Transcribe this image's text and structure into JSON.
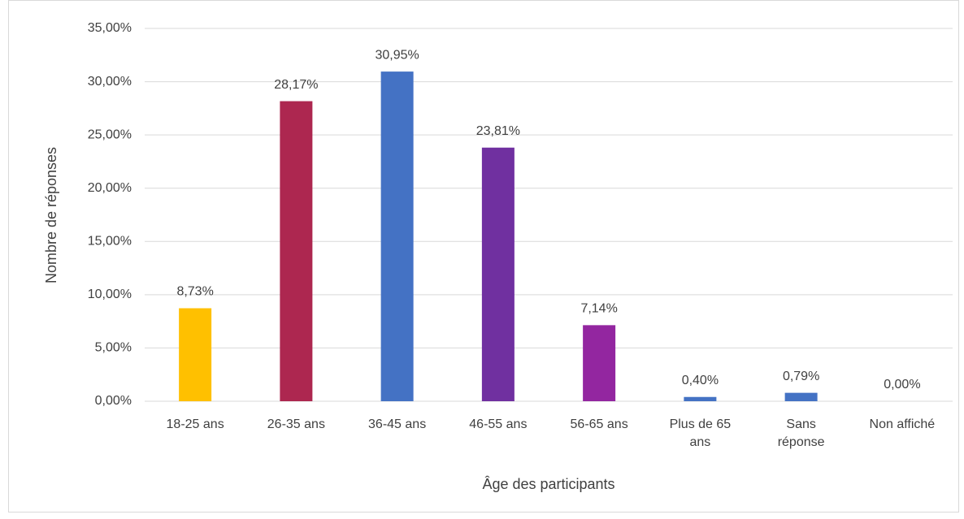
{
  "chart_data": {
    "type": "bar",
    "x_label": "Âge des participants",
    "y_label": "Nombre de réponses",
    "categories": [
      "18-25 ans",
      "26-35 ans",
      "36-45 ans",
      "46-55 ans",
      "56-65 ans",
      "Plus de 65 ans",
      "Sans réponse",
      "Non affiché"
    ],
    "values": [
      8.73,
      28.17,
      30.95,
      23.81,
      7.14,
      0.4,
      0.79,
      0.0
    ],
    "value_labels": [
      "8,73%",
      "28,17%",
      "30,95%",
      "23,81%",
      "7,14%",
      "0,40%",
      "0,79%",
      "0,00%"
    ],
    "colors": [
      "#ffc000",
      "#ad2750",
      "#4472c4",
      "#7030a0",
      "#9326a0",
      "#4472c4",
      "#4472c4",
      "#4472c4"
    ],
    "ylim": [
      0,
      35
    ],
    "yticks": [
      {
        "value": 0,
        "label": "0,00%"
      },
      {
        "value": 5,
        "label": "5,00%"
      },
      {
        "value": 10,
        "label": "10,00%"
      },
      {
        "value": 15,
        "label": "15,00%"
      },
      {
        "value": 20,
        "label": "20,00%"
      },
      {
        "value": 25,
        "label": "25,00%"
      },
      {
        "value": 30,
        "label": "30,00%"
      },
      {
        "value": 35,
        "label": "35,00%"
      }
    ],
    "grid": true
  }
}
